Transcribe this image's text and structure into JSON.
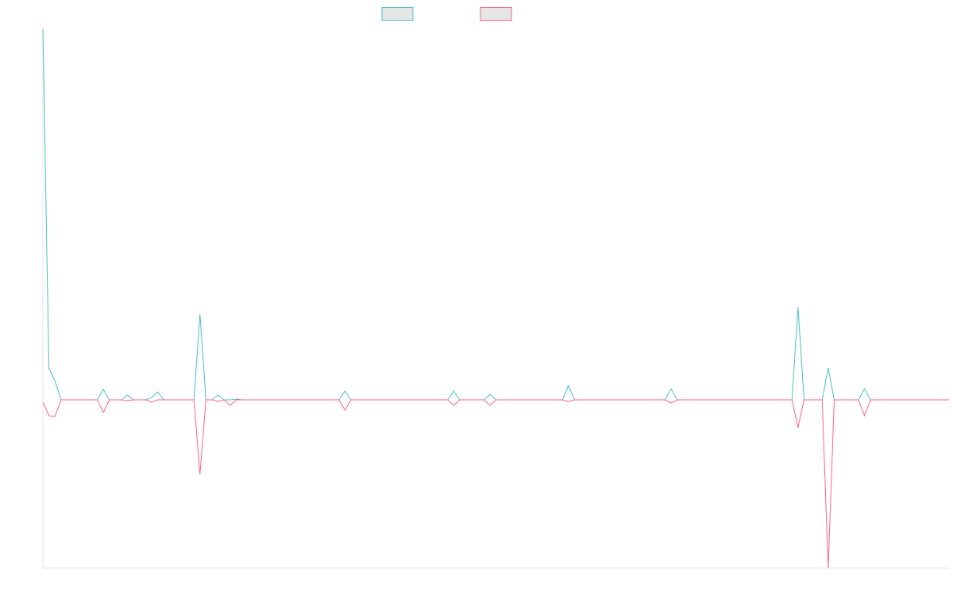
{
  "chart_data": {
    "type": "line",
    "series": [
      {
        "color": "#4bc0c0",
        "values": [
          46.8,
          4,
          2.4,
          0,
          0,
          0,
          0,
          0,
          0,
          0,
          1.3,
          0,
          0,
          0,
          0.6,
          0,
          0,
          0,
          0.3,
          1,
          0,
          0,
          0,
          0,
          0,
          0,
          10.8,
          0,
          0,
          0.6,
          0,
          0,
          0.1,
          0,
          0,
          0,
          0,
          0,
          0,
          0,
          0,
          0,
          0,
          0,
          0,
          0,
          0,
          0,
          0,
          0,
          1.1,
          0,
          0,
          0,
          0,
          0,
          0,
          0,
          0,
          0,
          0,
          0,
          0,
          0,
          0,
          0,
          0,
          0,
          1.1,
          0,
          0,
          0,
          0,
          0,
          0.7,
          0,
          0,
          0,
          0,
          0,
          0,
          0,
          0,
          0,
          0,
          0,
          0,
          1.8,
          0,
          0,
          0,
          0,
          0,
          0,
          0,
          0,
          0,
          0,
          0,
          0,
          0,
          0,
          0,
          0,
          1.4,
          0,
          0,
          0,
          0,
          0,
          0,
          0,
          0,
          0,
          0,
          0,
          0,
          0,
          0,
          0,
          0,
          0,
          0,
          0,
          0,
          11.7,
          0,
          0,
          0,
          0,
          4,
          0,
          0,
          0,
          0,
          0,
          1.4,
          0,
          0,
          0,
          0,
          0,
          0,
          0,
          0,
          0,
          0,
          0,
          0,
          0,
          0
        ]
      },
      {
        "color": "#ff6384",
        "values": [
          -0.3,
          -2,
          -2.1,
          0,
          0,
          0,
          0,
          0,
          0,
          0,
          -1.6,
          0,
          0,
          0,
          -0.1,
          0,
          0,
          0,
          -0.3,
          0,
          0,
          0,
          0,
          0,
          0,
          0,
          -9.4,
          0,
          0,
          -0.2,
          0,
          -0.7,
          0,
          0,
          0,
          0,
          0,
          0,
          0,
          0,
          0,
          0,
          0,
          0,
          0,
          0,
          0,
          0,
          0,
          0,
          -1.3,
          0,
          0,
          0,
          0,
          0,
          0,
          0,
          0,
          0,
          0,
          0,
          0,
          0,
          0,
          0,
          0,
          0,
          -0.7,
          0,
          0,
          0,
          0,
          0,
          -0.7,
          0,
          0,
          0,
          0,
          0,
          0,
          0,
          0,
          0,
          0,
          0,
          0,
          -0.2,
          0,
          0,
          0,
          0,
          0,
          0,
          0,
          0,
          0,
          0,
          0,
          0,
          0,
          0,
          0,
          0,
          -0.4,
          0,
          0,
          0,
          0,
          0,
          0,
          0,
          0,
          0,
          0,
          0,
          0,
          0,
          0,
          0,
          0,
          0,
          0,
          0,
          0,
          -3.5,
          0,
          0,
          0,
          0,
          -21.2,
          0,
          0,
          0,
          0,
          0,
          -2,
          0,
          0,
          0,
          0,
          0,
          0,
          0,
          0,
          0,
          0,
          0,
          0,
          0,
          0
        ]
      }
    ],
    "ylim": [
      -21.2,
      46.8
    ],
    "legend": "top"
  }
}
